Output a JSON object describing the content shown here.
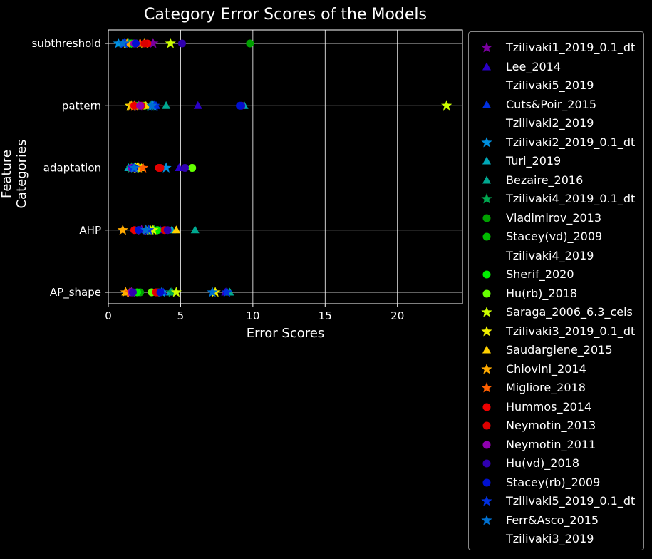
{
  "chart_data": {
    "type": "scatter",
    "title": "Category Error Scores of the Models",
    "xlabel": "Error Scores",
    "ylabel": "Feature Categories",
    "categories": [
      "subthreshold",
      "pattern",
      "adaptation",
      "AHP",
      "AP_shape"
    ],
    "xlim": [
      0,
      24.5
    ],
    "xticks": [
      0,
      5,
      10,
      15,
      20
    ],
    "grid": true,
    "legend_position": "outside-right",
    "series": [
      {
        "name": "Tzilivaki1_2019_0.1_dt",
        "marker": "star",
        "color": "#7a00a0",
        "values": [
          3.1,
          2.1,
          1.6,
          2.3,
          1.6
        ]
      },
      {
        "name": "Lee_2014",
        "marker": "triangle",
        "color": "#2a00c8",
        "values": [
          1.5,
          6.2,
          4.9,
          3.6,
          8.1
        ]
      },
      {
        "name": "Tzilivaki5_2019",
        "marker": "none",
        "color": "#ffffff",
        "values": []
      },
      {
        "name": "Cuts&Poir_2015",
        "marker": "triangle",
        "color": "#0030e0",
        "values": [
          1.2,
          3.3,
          1.8,
          2.6,
          3.8
        ]
      },
      {
        "name": "Tzilivaki2_2019",
        "marker": "none",
        "color": "#ffffff",
        "values": []
      },
      {
        "name": "Tzilivaki2_2019_0.1_dt",
        "marker": "star",
        "color": "#0090e0",
        "values": [
          0.7,
          3.1,
          4.0,
          2.8,
          3.7
        ]
      },
      {
        "name": "Turi_2019",
        "marker": "triangle",
        "color": "#00a8b8",
        "values": [
          1.0,
          9.4,
          1.4,
          4.4,
          4.3
        ]
      },
      {
        "name": "Bezaire_2016",
        "marker": "triangle",
        "color": "#00a890",
        "values": [
          1.3,
          4.0,
          1.7,
          6.0,
          8.4
        ]
      },
      {
        "name": "Tzilivaki4_2019_0.1_dt",
        "marker": "star",
        "color": "#00a850",
        "values": [
          1.4,
          2.9,
          1.6,
          3.2,
          4.4
        ]
      },
      {
        "name": "Vladimirov_2013",
        "marker": "circle",
        "color": "#00a000",
        "values": [
          9.8,
          2.4,
          1.9,
          2.9,
          2.2
        ]
      },
      {
        "name": "Stacey(vd)_2009",
        "marker": "circle",
        "color": "#00bb00",
        "values": [
          1.8,
          1.9,
          5.8,
          3.0,
          3.5
        ]
      },
      {
        "name": "Tzilivaki4_2019",
        "marker": "none",
        "color": "#ffffff",
        "values": []
      },
      {
        "name": "Sherif_2020",
        "marker": "circle",
        "color": "#00ee00",
        "values": [
          1.6,
          2.1,
          2.2,
          3.4,
          2.0
        ]
      },
      {
        "name": "Hu(rb)_2018",
        "marker": "circle",
        "color": "#66ff00",
        "values": [
          1.9,
          2.5,
          5.8,
          2.8,
          3.0
        ]
      },
      {
        "name": "Saraga_2006_6.3_cels",
        "marker": "star",
        "color": "#ccff00",
        "values": [
          4.3,
          23.4,
          1.9,
          3.1,
          4.7
        ]
      },
      {
        "name": "Tzilivaki3_2019_0.1_dt",
        "marker": "star",
        "color": "#f0f000",
        "values": [
          2.5,
          1.5,
          2.0,
          2.9,
          7.4
        ]
      },
      {
        "name": "Saudargiene_2015",
        "marker": "triangle",
        "color": "#ffd000",
        "values": [
          2.2,
          2.6,
          2.3,
          4.7,
          1.2
        ]
      },
      {
        "name": "Chiovini_2014",
        "marker": "star",
        "color": "#ffaa00",
        "values": [
          1.3,
          1.6,
          2.1,
          1.0,
          1.2
        ]
      },
      {
        "name": "Migliore_2018",
        "marker": "star",
        "color": "#ff6000",
        "values": [
          2.2,
          1.8,
          2.4,
          2.6,
          1.5
        ]
      },
      {
        "name": "Hummos_2014",
        "marker": "circle",
        "color": "#ee0000",
        "values": [
          2.7,
          1.8,
          3.5,
          1.8,
          3.3
        ]
      },
      {
        "name": "Neymotin_2013",
        "marker": "circle",
        "color": "#dd0000",
        "values": [
          2.5,
          2.3,
          3.6,
          3.9,
          3.4
        ]
      },
      {
        "name": "Neymotin_2011",
        "marker": "circle",
        "color": "#9000b0",
        "values": [
          1.8,
          2.2,
          1.6,
          2.1,
          1.6
        ]
      },
      {
        "name": "Hu(vd)_2018",
        "marker": "circle",
        "color": "#3000b0",
        "values": [
          5.1,
          9.2,
          5.3,
          4.1,
          1.7
        ]
      },
      {
        "name": "Stacey(rb)_2009",
        "marker": "circle",
        "color": "#0010d0",
        "values": [
          1.9,
          9.1,
          1.8,
          2.1,
          3.6
        ]
      },
      {
        "name": "Tzilivaki5_2019_0.1_dt",
        "marker": "star",
        "color": "#0030e0",
        "values": [
          1.1,
          3.2,
          1.7,
          2.8,
          8.2
        ]
      },
      {
        "name": "Ferr&Asco_2015",
        "marker": "star",
        "color": "#0070d0",
        "values": [
          1.0,
          3.0,
          1.8,
          2.6,
          7.2
        ]
      },
      {
        "name": "Tzilivaki3_2019",
        "marker": "none",
        "color": "#ffffff",
        "values": []
      }
    ]
  }
}
